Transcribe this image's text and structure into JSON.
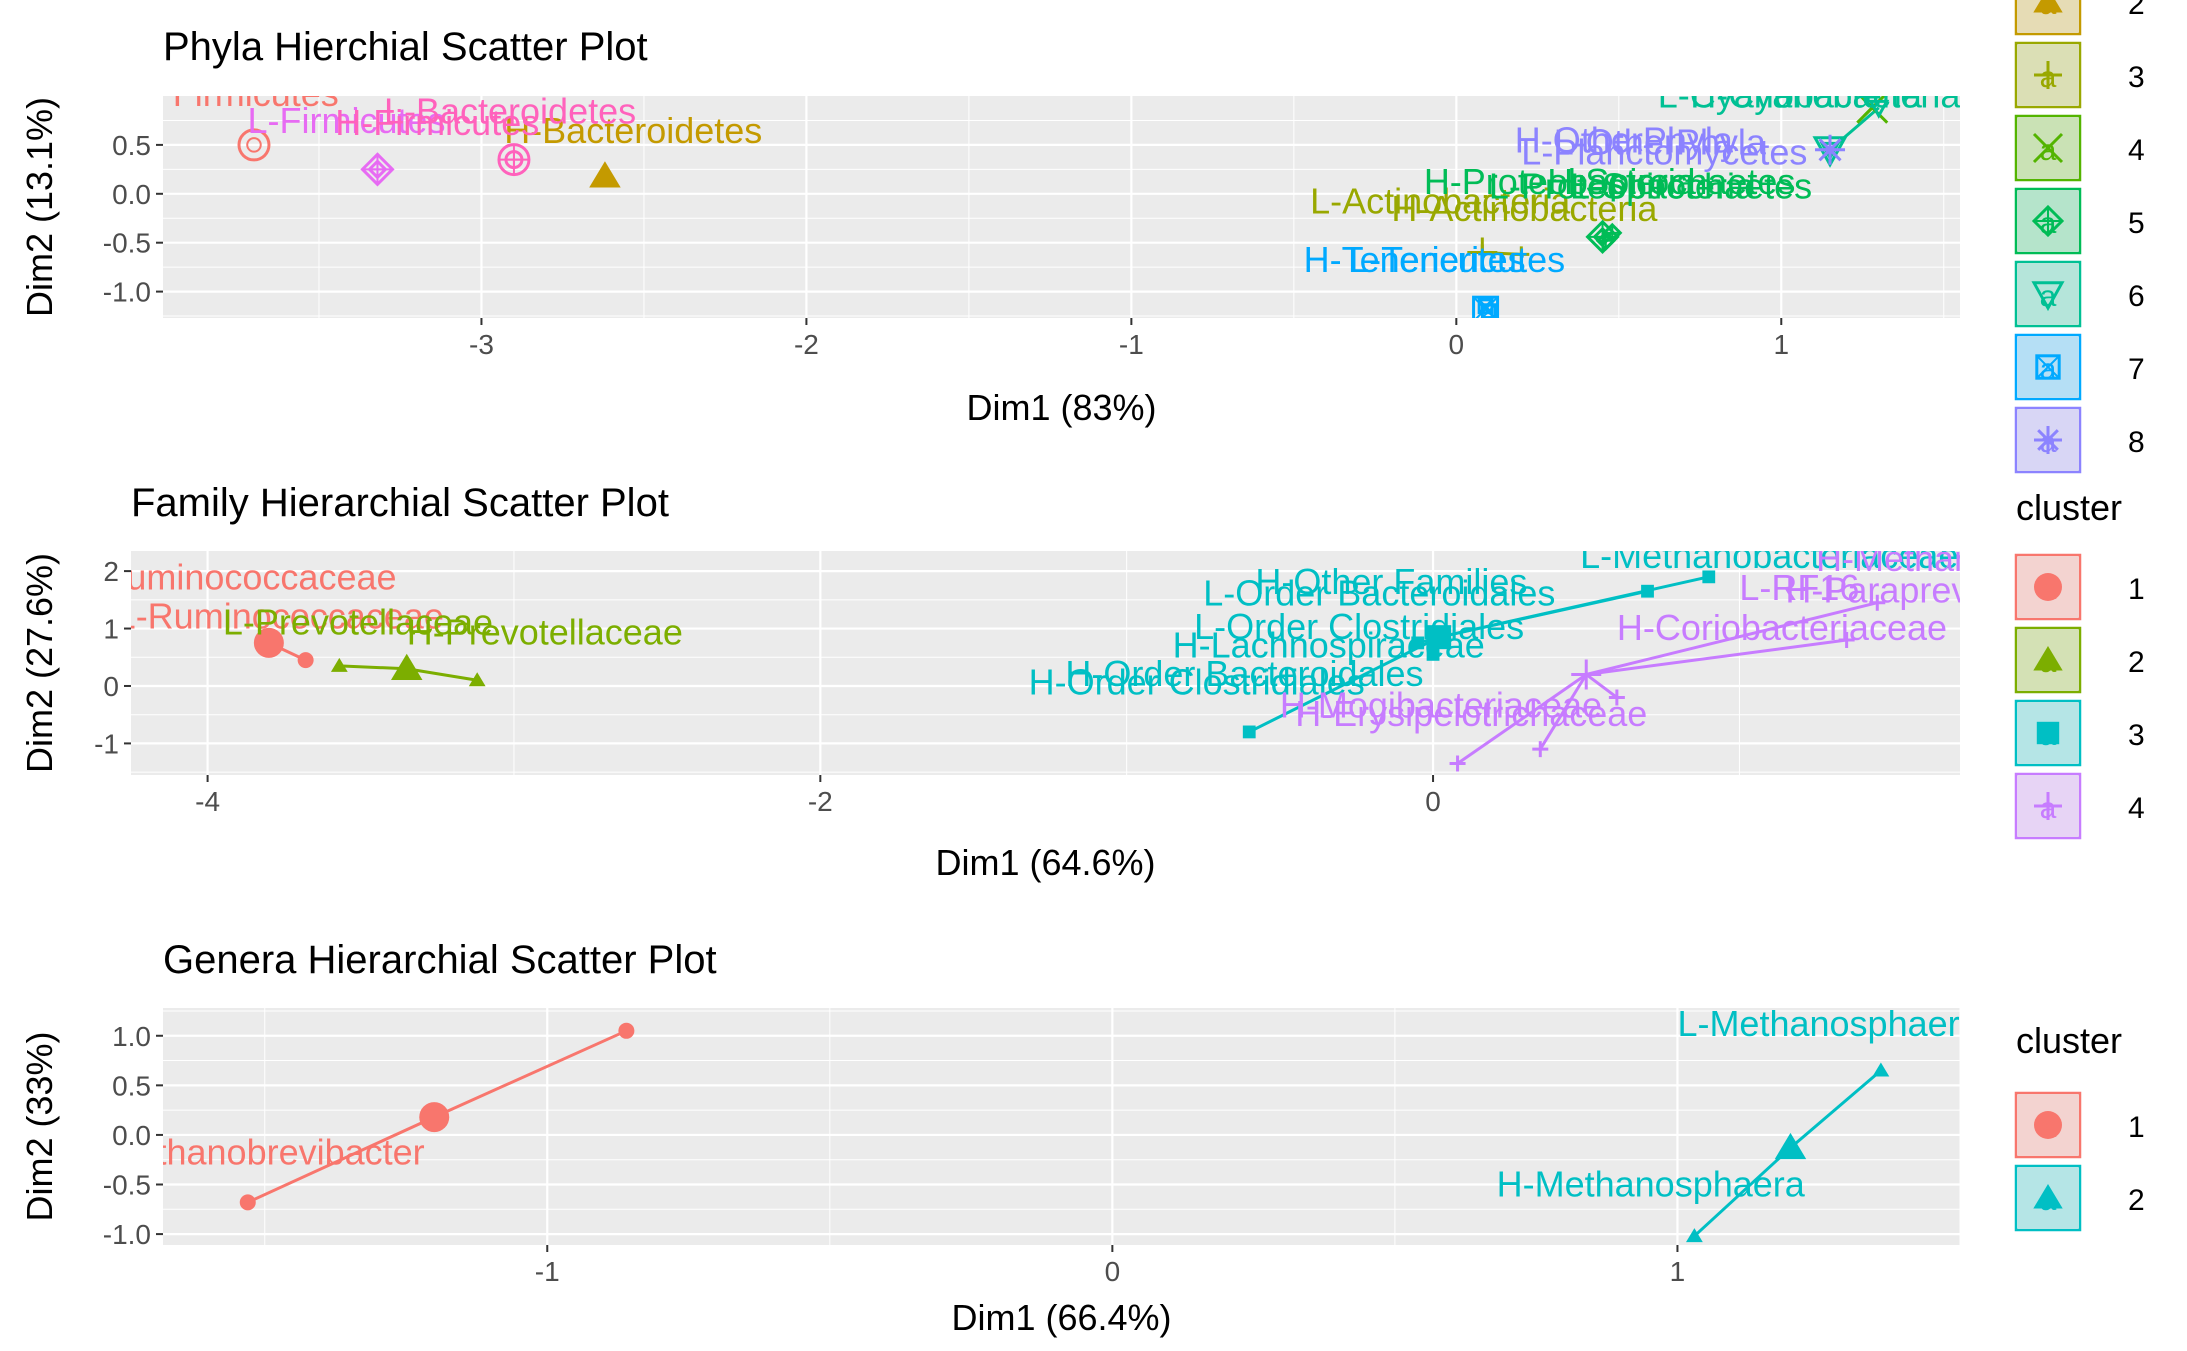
{
  "chart_data": [
    {
      "id": "phyla",
      "type": "scatter",
      "title": "Phyla Hierchial Scatter Plot",
      "xlabel": "Dim1 (83%)",
      "ylabel": "Dim2 (13.1%)",
      "xlim": [
        -3.98,
        1.55
      ],
      "ylim": [
        -1.27,
        1.0
      ],
      "xticks": [
        -3,
        -2,
        -1,
        0,
        1
      ],
      "yticks": [
        0.5,
        0.0,
        -0.5,
        -1.0
      ],
      "ytick_labels": [
        "0.5",
        "0.0",
        "-0.5",
        "-1.0"
      ],
      "legend": {
        "title": "",
        "placement": "right",
        "entries": [
          "2",
          "3",
          "4",
          "5",
          "6",
          "7",
          "8"
        ]
      },
      "series": [
        {
          "cluster": "1",
          "color": "#F8766D",
          "shape": "circle-ring",
          "center": [
            -3.7,
            0.5
          ],
          "labels": [
            [
              "Firmicutes",
              -3.95,
              0.9
            ]
          ]
        },
        {
          "cluster": "2",
          "color": "#C49A00",
          "shape": "triangle",
          "center": [
            -2.62,
            0.18
          ],
          "labels": [
            [
              "H-Bacteroidetes",
              -2.93,
              0.52
            ]
          ]
        },
        {
          "cluster": "3",
          "color": "#99A800",
          "shape": "cross",
          "center": [
            0.08,
            -0.6
          ],
          "points": [
            [
              0.08,
              -0.6
            ],
            [
              0.2,
              -0.62
            ]
          ],
          "labels": [
            [
              "L-Actinobacteria",
              -0.45,
              -0.2
            ],
            [
              "H-Actinobacteria",
              -0.2,
              -0.28
            ]
          ]
        },
        {
          "cluster": "4",
          "color": "#53B400",
          "shape": "x",
          "center": [
            1.28,
            0.88
          ],
          "points": [
            [
              1.28,
              0.88
            ]
          ],
          "labels": []
        },
        {
          "cluster": "5",
          "color": "#00BC56",
          "shape": "diamond-plus",
          "center": [
            0.45,
            -0.44
          ],
          "points": [
            [
              0.45,
              -0.44
            ],
            [
              0.48,
              -0.4
            ],
            [
              0.46,
              -0.48
            ]
          ],
          "labels": [
            [
              "H-Proteobacteria",
              -0.1,
              0.0
            ],
            [
              "L-Proteobacteria",
              0.1,
              -0.05
            ],
            [
              "H-Spirochaetes",
              0.28,
              0.0
            ],
            [
              "L-Spirochaetes",
              0.35,
              -0.05
            ]
          ]
        },
        {
          "cluster": "6",
          "color": "#00C094",
          "shape": "triangle-down",
          "center": [
            1.15,
            0.45
          ],
          "points": [
            [
              1.15,
              0.45
            ],
            [
              1.3,
              0.88
            ]
          ],
          "labels": [
            [
              "L-Cyanobacteria",
              0.62,
              0.88
            ],
            [
              "H-Cyanobacteria",
              0.72,
              0.88
            ]
          ]
        },
        {
          "cluster": "7",
          "color": "#00A9FF",
          "shape": "square-x",
          "center": [
            0.09,
            -1.18
          ],
          "points": [
            [
              0.09,
              -1.15
            ],
            [
              0.1,
              -1.2
            ]
          ],
          "labels": [
            [
              "H-Tenericutes",
              -0.47,
              -0.8
            ],
            [
              "L-Tenericutes",
              -0.33,
              -0.8
            ]
          ]
        },
        {
          "cluster": "8",
          "color": "#8C83FF",
          "shape": "star",
          "center": [
            1.15,
            0.45
          ],
          "points": [
            [
              1.15,
              0.45
            ]
          ],
          "labels": [
            [
              "H-OtherPhyla",
              0.18,
              0.42
            ],
            [
              "L-Planctomycetes",
              0.2,
              0.3
            ],
            [
              "L-OtherPhyla",
              0.3,
              0.4
            ]
          ]
        },
        {
          "cluster": "9",
          "color": "#E76BF3",
          "shape": "diamond-plus",
          "center": [
            -3.32,
            0.25
          ],
          "points": [
            [
              -3.32,
              0.25
            ]
          ],
          "labels": [
            [
              "L-Firmicutes",
              -3.72,
              0.62
            ]
          ]
        },
        {
          "cluster": "10",
          "color": "#FF62BC",
          "shape": "circle-plus",
          "center": [
            -2.9,
            0.35
          ],
          "points": [
            [
              -2.9,
              0.35
            ]
          ],
          "labels": [
            [
              "L-Bacteroidetes",
              -3.3,
              0.72
            ],
            [
              "H-Firmicutes",
              -3.45,
              0.6
            ]
          ]
        }
      ]
    },
    {
      "id": "family",
      "type": "scatter",
      "title": "Family Hierarchial Scatter Plot",
      "xlabel": "Dim1 (64.6%)",
      "ylabel": "Dim2 (27.6%)",
      "xlim": [
        -4.25,
        1.72
      ],
      "ylim": [
        -1.55,
        2.35
      ],
      "xticks": [
        -4,
        -2,
        0
      ],
      "yticks": [
        2,
        1,
        0,
        -1
      ],
      "legend": {
        "title": "cluster",
        "placement": "right",
        "entries": [
          "1",
          "2",
          "3",
          "4"
        ]
      },
      "series": [
        {
          "cluster": "1",
          "color": "#F8766D",
          "shape": "circle",
          "center": [
            -3.8,
            0.75
          ],
          "points": [
            [
              -3.8,
              0.75
            ],
            [
              -3.68,
              0.45
            ]
          ],
          "labels": [
            [
              "Ruminococcaceae",
              -4.35,
              1.68
            ],
            [
              "L-Ruminococcaceae",
              -4.3,
              1.0
            ]
          ]
        },
        {
          "cluster": "2",
          "color": "#7CAE00",
          "shape": "triangle",
          "center": [
            -3.35,
            0.3
          ],
          "points": [
            [
              -3.57,
              0.35
            ],
            [
              -3.12,
              0.1
            ]
          ],
          "labels": [
            [
              "L-Prevotellaceae",
              -3.95,
              0.9
            ],
            [
              "H-Prevotellaceae",
              -3.35,
              0.72
            ]
          ]
        },
        {
          "cluster": "3",
          "color": "#00BFC4",
          "shape": "square",
          "center": [
            0.02,
            0.85
          ],
          "points": [
            [
              -0.6,
              -0.8
            ],
            [
              0.0,
              0.55
            ],
            [
              0.7,
              1.65
            ],
            [
              0.9,
              1.9
            ],
            [
              -0.05,
              0.75
            ]
          ],
          "labels": [
            [
              "H-Other Families",
              -0.58,
              1.6
            ],
            [
              "L-Order Bacteroidales",
              -0.75,
              1.4
            ],
            [
              "L-Order Clostridiales",
              -0.78,
              0.82
            ],
            [
              "H-Lachnospiraceae",
              -0.85,
              0.5
            ],
            [
              "H-Order Bacteroidales",
              -1.2,
              0.0
            ],
            [
              "H-Order Clostridiales",
              -1.32,
              -0.15
            ],
            [
              "L-Methanobacteriaceae",
              0.48,
              2.05
            ]
          ]
        },
        {
          "cluster": "4",
          "color": "#C77CFF",
          "shape": "cross",
          "center": [
            0.5,
            0.2
          ],
          "points": [
            [
              0.08,
              -1.35
            ],
            [
              0.35,
              -1.1
            ],
            [
              1.45,
              1.45
            ],
            [
              1.35,
              0.8
            ],
            [
              0.6,
              -0.2
            ]
          ],
          "labels": [
            [
              "H-Methanobacteriaceae",
              1.25,
              2.0
            ],
            [
              "L-RF16",
              1.0,
              1.5
            ],
            [
              "H-Paraprevotellaceae",
              1.15,
              1.45
            ],
            [
              "H-Coriobacteriaceae",
              0.6,
              0.8
            ],
            [
              "H-Erysipelotrichaceae",
              -0.45,
              -0.7
            ],
            [
              "H-Mogibacteriaceae",
              -0.5,
              -0.55
            ]
          ]
        }
      ]
    },
    {
      "id": "genera",
      "type": "scatter",
      "title": "Genera Hierarchial Scatter Plot",
      "xlabel": "Dim1 (66.4%)",
      "ylabel": "Dim2 (33%)",
      "xlim": [
        -1.68,
        1.5
      ],
      "ylim": [
        -1.11,
        1.28
      ],
      "xticks": [
        -1,
        0,
        1
      ],
      "yticks": [
        1.0,
        0.5,
        0.0,
        -0.5,
        -1.0
      ],
      "ytick_labels": [
        "1.0",
        "0.5",
        "0.0",
        "-0.5",
        "-1.0"
      ],
      "legend": {
        "title": "cluster",
        "placement": "right",
        "entries": [
          "1",
          "2"
        ]
      },
      "series": [
        {
          "cluster": "1",
          "color": "#F8766D",
          "shape": "circle",
          "center": [
            -1.2,
            0.18
          ],
          "points": [
            [
              -1.53,
              -0.68
            ],
            [
              -0.86,
              1.05
            ]
          ],
          "labels": [
            [
              "Methanobrevibacter",
              -1.78,
              -0.3
            ]
          ]
        },
        {
          "cluster": "2",
          "color": "#00BFC4",
          "shape": "triangle",
          "center": [
            1.2,
            -0.13
          ],
          "points": [
            [
              1.03,
              -1.02
            ],
            [
              1.36,
              0.65
            ]
          ],
          "labels": [
            [
              "L-Methanosphaera",
              1.0,
              1.0
            ],
            [
              "H-Methanosphaera",
              0.68,
              -0.62
            ]
          ]
        }
      ]
    }
  ]
}
